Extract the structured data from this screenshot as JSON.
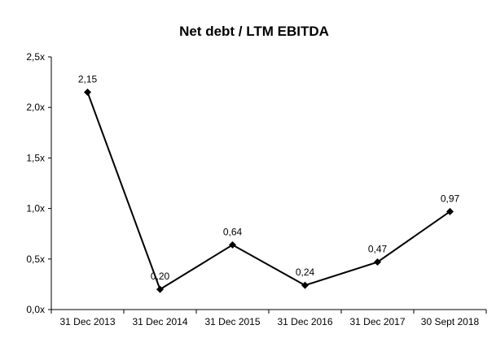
{
  "chart_data": {
    "type": "line",
    "title": "Net debt / LTM EBITDA",
    "xlabel": "",
    "ylabel": "",
    "categories": [
      "31 Dec 2013",
      "31 Dec 2014",
      "31 Dec 2015",
      "31 Dec 2016",
      "31 Dec 2017",
      "30 Sept 2018"
    ],
    "series": [
      {
        "values": [
          2.15,
          0.2,
          0.64,
          0.24,
          0.47,
          0.97
        ],
        "labels": [
          "2,15",
          "0,20",
          "0,64",
          "0,24",
          "0,47",
          "0,97"
        ],
        "color": "#000000",
        "marker": "diamond"
      }
    ],
    "ylim": [
      0,
      2.5
    ],
    "yticks": [
      0,
      0.5,
      1.0,
      1.5,
      2.0,
      2.5
    ],
    "ytick_labels": [
      "0,0x",
      "0,5x",
      "1,0x",
      "1,5x",
      "2,0x",
      "2,5x"
    ],
    "grid": false,
    "legend": "none"
  }
}
